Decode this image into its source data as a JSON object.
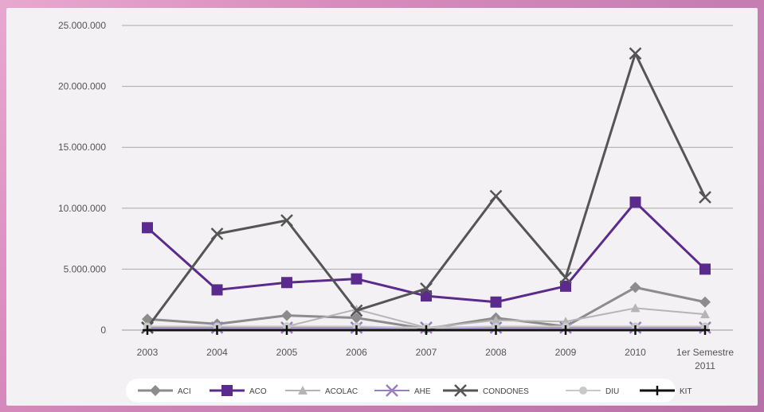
{
  "chart_data": {
    "type": "line",
    "title": "",
    "xlabel": "",
    "ylabel": "",
    "categories": [
      "2003",
      "2004",
      "2005",
      "2006",
      "2007",
      "2008",
      "2009",
      "2010",
      "1er Semestre 2011"
    ],
    "x_tick_labels": [
      [
        "2003"
      ],
      [
        "2004"
      ],
      [
        "2005"
      ],
      [
        "2006"
      ],
      [
        "2007"
      ],
      [
        "2008"
      ],
      [
        "2009"
      ],
      [
        "2010"
      ],
      [
        "1er Semestre",
        "2011"
      ]
    ],
    "y_tick_labels": [
      "0",
      "5.000.000",
      "10.000.000",
      "15.000.000",
      "20.000.000",
      "25.000.000"
    ],
    "y_ticks": [
      0,
      5000000,
      10000000,
      15000000,
      20000000,
      25000000
    ],
    "ylim": [
      0,
      25000000
    ],
    "grid": true,
    "legend_position": "bottom",
    "series": [
      {
        "name": "ACI",
        "color": "#8c8c8c",
        "marker": "diamond",
        "width": 3,
        "values": [
          900000,
          500000,
          1200000,
          1000000,
          100000,
          1000000,
          300000,
          3500000,
          2300000
        ]
      },
      {
        "name": "ACO",
        "color": "#5a2a8c",
        "marker": "square",
        "width": 3,
        "values": [
          8400000,
          3300000,
          3900000,
          4200000,
          2800000,
          2300000,
          3600000,
          10500000,
          5000000
        ]
      },
      {
        "name": "ACOLAC",
        "color": "#b5b5b5",
        "marker": "triangle",
        "width": 2,
        "values": [
          200000,
          200000,
          300000,
          1700000,
          200000,
          800000,
          700000,
          1800000,
          1300000
        ]
      },
      {
        "name": "AHE",
        "color": "#9a7fc0",
        "marker": "x",
        "width": 2,
        "values": [
          200000,
          200000,
          200000,
          200000,
          200000,
          200000,
          200000,
          200000,
          200000
        ]
      },
      {
        "name": "CONDONES",
        "color": "#555555",
        "marker": "x",
        "width": 3,
        "values": [
          200000,
          7900000,
          9000000,
          1600000,
          3400000,
          11000000,
          4300000,
          22700000,
          10900000
        ]
      },
      {
        "name": "DIU",
        "color": "#c8c8c8",
        "marker": "circle",
        "width": 2,
        "values": [
          300000,
          300000,
          300000,
          300000,
          200000,
          300000,
          300000,
          300000,
          300000
        ]
      },
      {
        "name": "KIT",
        "color": "#111111",
        "marker": "plus",
        "width": 3,
        "values": [
          0,
          0,
          0,
          0,
          0,
          0,
          0,
          0,
          0
        ]
      }
    ]
  }
}
